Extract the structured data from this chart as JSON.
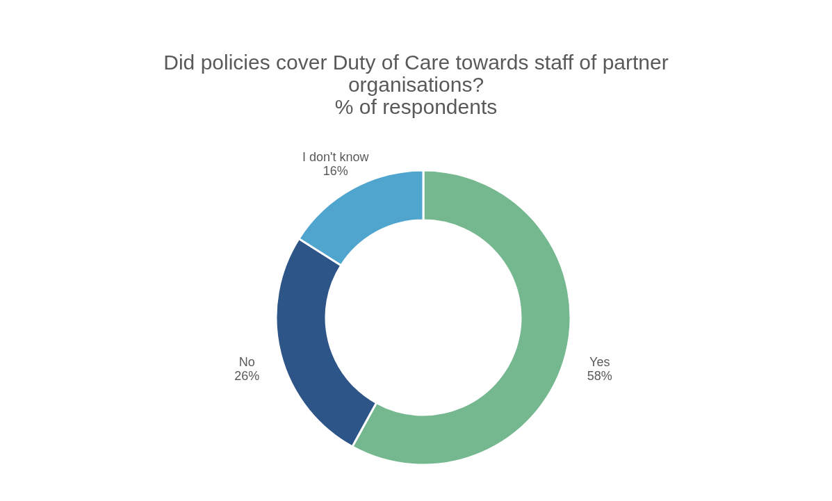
{
  "chart_data": {
    "type": "donut",
    "title": [
      "Did policies cover Duty of Care towards staff of partner",
      "organisations?",
      "% of  respondents"
    ],
    "categories": [
      "Yes",
      "No",
      "I don't know"
    ],
    "values": [
      58,
      26,
      16
    ],
    "value_labels": [
      "58%",
      "26%",
      "16%"
    ],
    "colors": [
      "#75b88f",
      "#2e5588",
      "#4fa5cd"
    ]
  }
}
